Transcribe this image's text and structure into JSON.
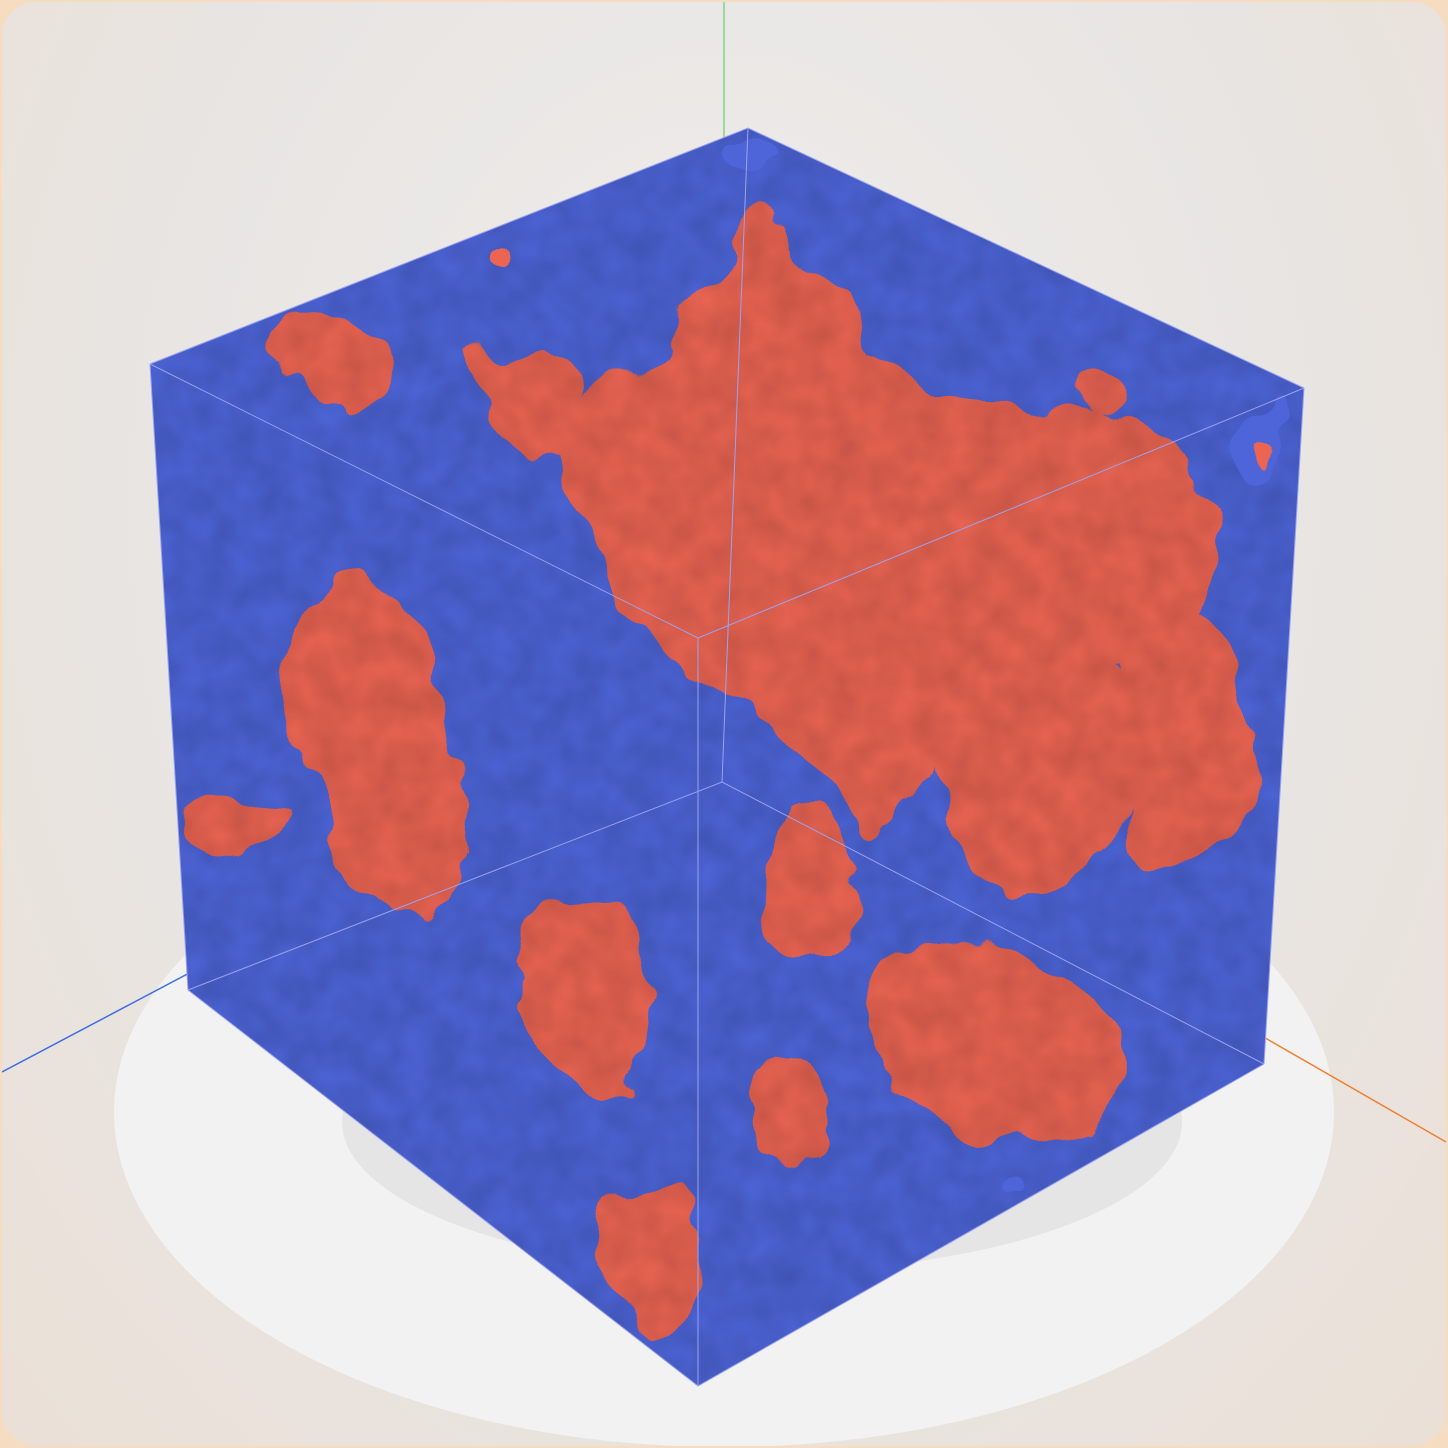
{
  "viewer": {
    "colors": {
      "background": "#e9e6e4",
      "frame": "#f6dcc0",
      "floor_disc": "#f2f2f2",
      "phase_a": "#ec6552",
      "phase_b": "#4d65d8",
      "axis_x": "#f08030",
      "axis_y": "#7ed87e",
      "axis_z": "#3c6ee6",
      "bounding_box": "#9aa2f0"
    },
    "icons": [
      "axis-x-icon",
      "axis-y-icon",
      "axis-z-icon"
    ]
  }
}
